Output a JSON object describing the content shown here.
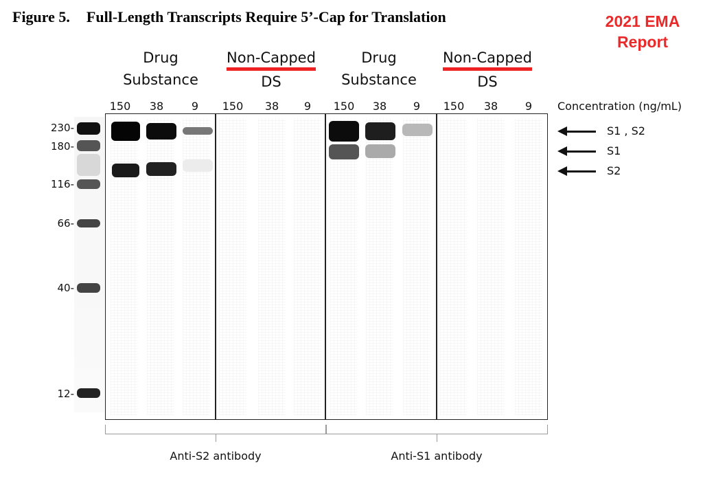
{
  "figure": {
    "number": "Figure 5.",
    "title": "Full-Length Transcripts Require 5’-Cap for Translation"
  },
  "report_badge": {
    "line1": "2021 EMA",
    "line2": "Report",
    "color": "#e82a2a"
  },
  "groups": [
    {
      "line1": "Drug",
      "line2": "Substance",
      "underlined": false
    },
    {
      "line1": "Non-Capped",
      "line2": "DS",
      "underlined": true
    },
    {
      "line1": "Drug",
      "line2": "Substance",
      "underlined": false
    },
    {
      "line1": "Non-Capped",
      "line2": "DS",
      "underlined": true
    }
  ],
  "concentrations": [
    "150",
    "38",
    "9",
    "150",
    "38",
    "9",
    "150",
    "38",
    "9",
    "150",
    "38",
    "9"
  ],
  "concentration_unit": "Concentration (ng/mL)",
  "markers": [
    "230-",
    "180-",
    "116-",
    "66-",
    "40-",
    "12-"
  ],
  "band_labels": [
    "S1 , S2",
    "S1",
    "S2"
  ],
  "antibodies": [
    "Anti-S2  antibody",
    "Anti-S1  antibody"
  ],
  "accent_color": "#ee2222"
}
